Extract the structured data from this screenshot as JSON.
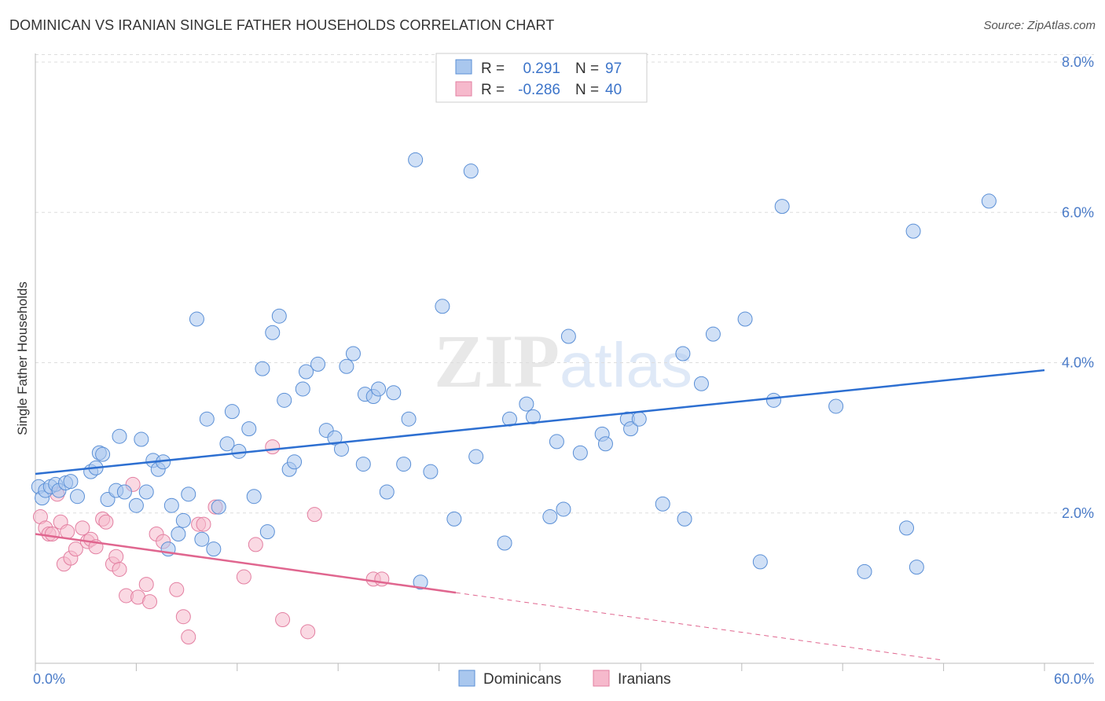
{
  "header": {
    "title": "DOMINICAN VS IRANIAN SINGLE FATHER HOUSEHOLDS CORRELATION CHART",
    "source": "Source: ZipAtlas.com"
  },
  "watermark": {
    "zip": "ZIP",
    "atlas": "atlas"
  },
  "legend": {
    "r_label": "R =",
    "n_label": "N =",
    "rows": [
      {
        "r": "0.291",
        "n": "97"
      },
      {
        "r": "-0.286",
        "n": "40"
      }
    ]
  },
  "colors": {
    "blue_fill": "#a9c7ee",
    "blue_stroke": "#5a8fd6",
    "blue_line": "#2d6fd1",
    "pink_fill": "#f6b9cc",
    "pink_stroke": "#e37fa1",
    "pink_line": "#e0668f",
    "value_text": "#3c74c9",
    "grid": "#dddddd"
  },
  "chart_data": {
    "type": "scatter",
    "title": "DOMINICAN VS IRANIAN SINGLE FATHER HOUSEHOLDS CORRELATION CHART",
    "xlabel": "",
    "ylabel": "Single Father Households",
    "xlim": [
      0,
      60
    ],
    "ylim": [
      0,
      8.4
    ],
    "x_tick_labels": [
      "0.0%",
      "60.0%"
    ],
    "y_ticks": [
      2,
      4,
      6,
      8
    ],
    "y_tick_labels": [
      "2.0%",
      "4.0%",
      "6.0%",
      "8.0%"
    ],
    "legend_position": "top-center",
    "series": [
      {
        "name": "Dominicans",
        "r": 0.291,
        "n": 97,
        "trend": {
          "x": [
            0,
            60
          ],
          "y": [
            2.52,
            3.9
          ]
        },
        "points": [
          [
            0.2,
            2.35
          ],
          [
            0.4,
            2.2
          ],
          [
            0.6,
            2.3
          ],
          [
            0.9,
            2.35
          ],
          [
            1.2,
            2.38
          ],
          [
            1.4,
            2.3
          ],
          [
            1.8,
            2.4
          ],
          [
            2.1,
            2.42
          ],
          [
            2.5,
            2.22
          ],
          [
            3.3,
            2.55
          ],
          [
            3.6,
            2.6
          ],
          [
            3.8,
            2.8
          ],
          [
            4.0,
            2.78
          ],
          [
            4.3,
            2.18
          ],
          [
            4.8,
            2.3
          ],
          [
            5.0,
            3.02
          ],
          [
            5.3,
            2.28
          ],
          [
            6.0,
            2.1
          ],
          [
            6.3,
            2.98
          ],
          [
            6.6,
            2.28
          ],
          [
            7.0,
            2.7
          ],
          [
            7.3,
            2.58
          ],
          [
            7.6,
            2.68
          ],
          [
            7.9,
            1.52
          ],
          [
            8.1,
            2.1
          ],
          [
            8.5,
            1.72
          ],
          [
            8.8,
            1.9
          ],
          [
            9.1,
            2.25
          ],
          [
            9.6,
            4.58
          ],
          [
            9.9,
            1.65
          ],
          [
            10.2,
            3.25
          ],
          [
            10.6,
            1.52
          ],
          [
            10.9,
            2.08
          ],
          [
            11.4,
            2.92
          ],
          [
            11.7,
            3.35
          ],
          [
            12.1,
            2.82
          ],
          [
            12.7,
            3.12
          ],
          [
            13.0,
            2.22
          ],
          [
            13.5,
            3.92
          ],
          [
            13.8,
            1.75
          ],
          [
            14.1,
            4.4
          ],
          [
            14.5,
            4.62
          ],
          [
            14.8,
            3.5
          ],
          [
            15.1,
            2.58
          ],
          [
            15.4,
            2.68
          ],
          [
            15.9,
            3.65
          ],
          [
            16.1,
            3.88
          ],
          [
            16.8,
            3.98
          ],
          [
            17.3,
            3.1
          ],
          [
            17.8,
            3.0
          ],
          [
            18.2,
            2.85
          ],
          [
            18.5,
            3.95
          ],
          [
            18.9,
            4.12
          ],
          [
            19.5,
            2.65
          ],
          [
            19.6,
            3.58
          ],
          [
            20.1,
            3.55
          ],
          [
            20.4,
            3.65
          ],
          [
            20.9,
            2.28
          ],
          [
            21.3,
            3.6
          ],
          [
            21.9,
            2.65
          ],
          [
            22.2,
            3.25
          ],
          [
            22.9,
            1.08
          ],
          [
            22.6,
            6.7
          ],
          [
            23.5,
            2.55
          ],
          [
            24.2,
            4.75
          ],
          [
            24.9,
            1.92
          ],
          [
            25.9,
            6.55
          ],
          [
            26.2,
            2.75
          ],
          [
            27.9,
            1.6
          ],
          [
            28.2,
            3.25
          ],
          [
            29.2,
            3.45
          ],
          [
            29.6,
            3.28
          ],
          [
            30.6,
            1.95
          ],
          [
            31.0,
            2.95
          ],
          [
            31.4,
            2.05
          ],
          [
            31.7,
            4.35
          ],
          [
            32.4,
            2.8
          ],
          [
            33.7,
            3.05
          ],
          [
            33.9,
            2.92
          ],
          [
            35.2,
            3.25
          ],
          [
            35.4,
            3.12
          ],
          [
            35.9,
            3.25
          ],
          [
            37.3,
            2.12
          ],
          [
            38.5,
            4.12
          ],
          [
            38.6,
            1.92
          ],
          [
            39.6,
            3.72
          ],
          [
            40.3,
            4.38
          ],
          [
            42.2,
            4.58
          ],
          [
            43.1,
            1.35
          ],
          [
            43.9,
            3.5
          ],
          [
            44.4,
            6.08
          ],
          [
            47.6,
            3.42
          ],
          [
            49.3,
            1.22
          ],
          [
            51.8,
            1.8
          ],
          [
            52.2,
            5.75
          ],
          [
            52.4,
            1.28
          ],
          [
            56.7,
            6.15
          ]
        ]
      },
      {
        "name": "Iranians",
        "r": -0.286,
        "n": 40,
        "trend": {
          "x": [
            0,
            25
          ],
          "y": [
            1.72,
            0.94
          ]
        },
        "trend_dashed": {
          "x": [
            25,
            54
          ],
          "y": [
            0.94,
            0.04
          ]
        },
        "points": [
          [
            0.3,
            1.95
          ],
          [
            0.6,
            1.8
          ],
          [
            0.8,
            1.72
          ],
          [
            1.0,
            1.72
          ],
          [
            1.3,
            2.25
          ],
          [
            1.5,
            1.88
          ],
          [
            1.7,
            1.32
          ],
          [
            1.9,
            1.75
          ],
          [
            2.1,
            1.4
          ],
          [
            2.4,
            1.52
          ],
          [
            2.8,
            1.8
          ],
          [
            3.1,
            1.62
          ],
          [
            3.3,
            1.65
          ],
          [
            3.6,
            1.55
          ],
          [
            4.0,
            1.92
          ],
          [
            4.2,
            1.88
          ],
          [
            4.6,
            1.32
          ],
          [
            4.8,
            1.42
          ],
          [
            5.0,
            1.25
          ],
          [
            5.4,
            0.9
          ],
          [
            5.8,
            2.38
          ],
          [
            6.1,
            0.88
          ],
          [
            6.6,
            1.05
          ],
          [
            6.8,
            0.82
          ],
          [
            7.2,
            1.72
          ],
          [
            7.6,
            1.62
          ],
          [
            8.4,
            0.98
          ],
          [
            8.8,
            0.62
          ],
          [
            9.1,
            0.35
          ],
          [
            9.7,
            1.85
          ],
          [
            10.0,
            1.85
          ],
          [
            10.7,
            2.08
          ],
          [
            12.4,
            1.15
          ],
          [
            13.1,
            1.58
          ],
          [
            14.1,
            2.88
          ],
          [
            14.7,
            0.58
          ],
          [
            16.2,
            0.42
          ],
          [
            16.6,
            1.98
          ],
          [
            20.1,
            1.12
          ],
          [
            20.6,
            1.12
          ]
        ]
      }
    ]
  }
}
